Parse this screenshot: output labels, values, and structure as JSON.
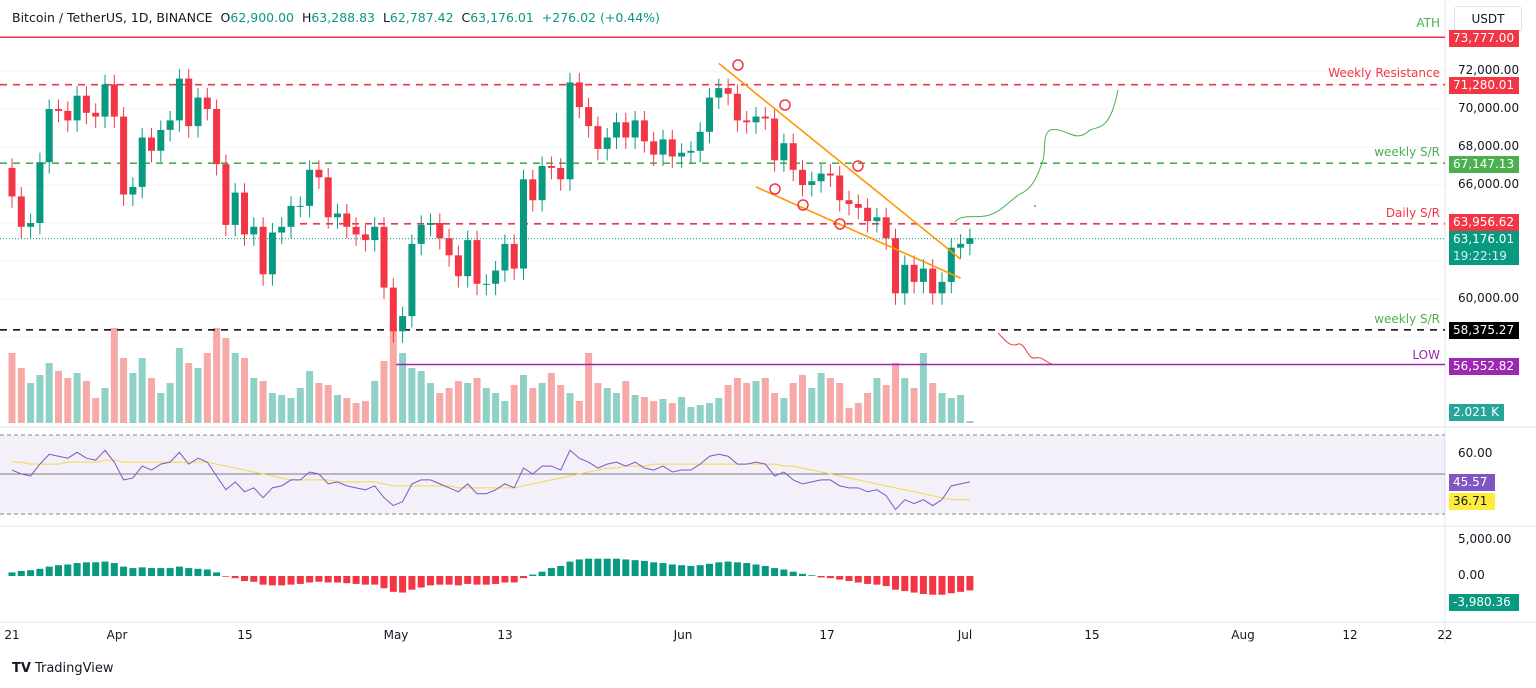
{
  "header": {
    "symbol": "Bitcoin / TetherUS, 1D, BINANCE",
    "o_label": "O",
    "o": "62,900.00",
    "h_label": "H",
    "h": "63,288.83",
    "l_label": "L",
    "l": "62,787.42",
    "c_label": "C",
    "c": "63,176.01",
    "change": "+276.02 (+0.44%)"
  },
  "currency": "USDT",
  "brand": "TradingView",
  "colors": {
    "up": "#089981",
    "down": "#f23645",
    "ath": "#f23645",
    "weekly_sr": "#4caf50",
    "support": "#000000",
    "low": "#9c27b0",
    "trend": "#ff9800",
    "rsi": "#7e57c2",
    "rsi_ma": "#f7d74a"
  },
  "levels": [
    {
      "name": "ATH",
      "price": 73777.0,
      "label": "73,777.00",
      "color": "#f23645",
      "text_color": "#4caf50",
      "style": "solid"
    },
    {
      "name": "Weekly Resistance",
      "price": 71280.01,
      "label": "71,280.01",
      "color": "#f23645",
      "text_color": "#f23645",
      "style": "dashed"
    },
    {
      "name": "weekly S/R",
      "price": 67147.13,
      "label": "67,147.13",
      "color": "#4caf50",
      "text_color": "#4caf50",
      "style": "dashed"
    },
    {
      "name": "Daily S/R",
      "price": 63956.62,
      "label": "63,956.62",
      "color": "#f23645",
      "text_color": "#f23645",
      "style": "dashed"
    },
    {
      "name": "weekly S/R",
      "price": 58375.27,
      "label": "58,375.27",
      "color": "#000000",
      "text_color": "#4caf50",
      "style": "dashed"
    },
    {
      "name": "LOW",
      "price": 56552.82,
      "label": "56,552.82",
      "color": "#9c27b0",
      "text_color": "#9c27b0",
      "style": "solid"
    }
  ],
  "last_price": {
    "price": 63176.01,
    "label": "63,176.01",
    "countdown": "19:22:19"
  },
  "price_axis": [
    "72,000.00",
    "70,000.00",
    "68,000.00",
    "66,000.00",
    "60,000.00"
  ],
  "volume_label": "2.021 K",
  "rsi": {
    "axis": [
      "60.00"
    ],
    "value": "45.57",
    "ma_value": "36.71"
  },
  "macd": {
    "axis": [
      "5,000.00",
      "0.00"
    ],
    "value": "-3,980.36"
  },
  "time_axis": [
    "21",
    "Apr",
    "15",
    "May",
    "13",
    "Jun",
    "17",
    "Jul",
    "15",
    "Aug",
    "12",
    "22"
  ],
  "chart_data": {
    "type": "candlestick",
    "start_date": "2024-03-21",
    "close": [
      65.4,
      63.8,
      64.0,
      67.2,
      70.0,
      69.9,
      69.4,
      70.7,
      69.8,
      69.6,
      71.3,
      69.6,
      65.5,
      65.9,
      68.5,
      67.8,
      68.9,
      69.4,
      71.6,
      69.1,
      70.6,
      70.0,
      67.1,
      63.9,
      65.6,
      63.4,
      63.8,
      61.3,
      63.5,
      63.8,
      64.9,
      64.9,
      66.8,
      66.4,
      64.3,
      64.5,
      63.8,
      63.4,
      63.1,
      63.8,
      60.6,
      58.3,
      59.1,
      62.9,
      63.9,
      64.0,
      63.2,
      62.3,
      61.2,
      63.1,
      60.8,
      60.8,
      61.5,
      62.9,
      61.6,
      66.3,
      65.2,
      67.0,
      66.9,
      66.3,
      71.4,
      70.1,
      69.1,
      67.9,
      68.5,
      69.3,
      68.5,
      69.4,
      68.3,
      67.6,
      68.4,
      67.5,
      67.7,
      67.8,
      68.8,
      70.6,
      71.1,
      70.8,
      69.4,
      69.3,
      69.6,
      69.5,
      67.3,
      68.2,
      66.8,
      66.0,
      66.2,
      66.6,
      66.5,
      65.2,
      65.0,
      64.8,
      64.1,
      64.3,
      63.2,
      60.3,
      61.8,
      60.9,
      61.6,
      60.3,
      60.9,
      62.7,
      62.9,
      63.2
    ],
    "close_unit": "thousand USDT",
    "volume": [
      70,
      55,
      40,
      48,
      60,
      52,
      45,
      50,
      42,
      25,
      35,
      95,
      65,
      50,
      65,
      45,
      30,
      40,
      75,
      60,
      55,
      70,
      95,
      85,
      70,
      65,
      45,
      42,
      30,
      28,
      25,
      35,
      52,
      40,
      38,
      28,
      25,
      20,
      22,
      42,
      62,
      95,
      70,
      55,
      52,
      40,
      30,
      35,
      42,
      40,
      45,
      35,
      30,
      22,
      38,
      48,
      35,
      40,
      50,
      38,
      30,
      22,
      70,
      40,
      35,
      30,
      42,
      28,
      26,
      22,
      24,
      20,
      26,
      16,
      18,
      20,
      25,
      38,
      45,
      40,
      42,
      45,
      30,
      25,
      40,
      48,
      35,
      50,
      45,
      40,
      15,
      20,
      30,
      45,
      38,
      60,
      45,
      35,
      70,
      40,
      30,
      25,
      28,
      2
    ],
    "rsi": [
      52,
      50,
      49,
      55,
      60,
      59,
      58,
      61,
      58,
      57,
      62,
      56,
      47,
      48,
      54,
      52,
      55,
      56,
      61,
      55,
      58,
      56,
      49,
      42,
      46,
      41,
      43,
      38,
      43,
      44,
      47,
      47,
      51,
      50,
      45,
      46,
      44,
      43,
      42,
      44,
      38,
      34,
      36,
      45,
      47,
      47,
      45,
      43,
      41,
      45,
      40,
      40,
      42,
      45,
      43,
      53,
      50,
      54,
      54,
      52,
      62,
      58,
      56,
      53,
      55,
      56,
      54,
      56,
      53,
      52,
      54,
      51,
      52,
      52,
      55,
      59,
      60,
      59,
      55,
      55,
      56,
      55,
      49,
      51,
      47,
      45,
      46,
      47,
      47,
      44,
      43,
      43,
      41,
      42,
      39,
      32,
      37,
      35,
      37,
      34,
      37,
      44,
      45,
      46
    ],
    "rsi_ma": [
      56,
      56,
      55,
      55,
      55,
      55,
      56,
      56,
      56,
      56,
      57,
      57,
      56,
      56,
      56,
      56,
      56,
      56,
      56,
      56,
      56,
      56,
      55,
      54,
      53,
      52,
      51,
      50,
      49,
      48,
      47,
      47,
      47,
      47,
      47,
      46,
      46,
      46,
      46,
      46,
      45,
      44,
      44,
      44,
      44,
      44,
      44,
      44,
      43,
      43,
      43,
      43,
      43,
      43,
      43,
      44,
      45,
      46,
      47,
      48,
      49,
      50,
      51,
      52,
      53,
      53,
      54,
      54,
      54,
      55,
      55,
      55,
      55,
      55,
      55,
      55,
      55,
      55,
      55,
      55,
      55,
      55,
      55,
      54,
      54,
      53,
      52,
      51,
      50,
      49,
      48,
      47,
      46,
      45,
      44,
      43,
      42,
      41,
      40,
      39,
      38,
      37,
      37,
      37
    ],
    "macd_hist": [
      500,
      700,
      800,
      1000,
      1300,
      1500,
      1600,
      1800,
      1900,
      1900,
      2000,
      1800,
      1300,
      1100,
      1200,
      1100,
      1100,
      1100,
      1300,
      1100,
      1000,
      900,
      500,
      -100,
      -300,
      -700,
      -800,
      -1200,
      -1300,
      -1300,
      -1200,
      -1100,
      -900,
      -800,
      -900,
      -900,
      -1000,
      -1100,
      -1200,
      -1200,
      -1700,
      -2200,
      -2300,
      -1900,
      -1600,
      -1300,
      -1200,
      -1200,
      -1300,
      -1100,
      -1200,
      -1200,
      -1100,
      -900,
      -900,
      -300,
      200,
      600,
      1100,
      1400,
      2000,
      2300,
      2400,
      2400,
      2400,
      2400,
      2300,
      2200,
      2100,
      1900,
      1800,
      1600,
      1500,
      1400,
      1500,
      1700,
      1900,
      2000,
      1900,
      1800,
      1600,
      1400,
      1100,
      900,
      600,
      300,
      100,
      -200,
      -300,
      -500,
      -700,
      -900,
      -1100,
      -1200,
      -1400,
      -1900,
      -2100,
      -2300,
      -2500,
      -2600,
      -2600,
      -2400,
      -2200,
      -2000
    ],
    "price_ylim": [
      55000,
      75000
    ],
    "rsi_ylim": [
      30,
      70
    ],
    "trendlines": [
      {
        "from": {
          "date": "2024-06-05",
          "price": 72400
        },
        "to": {
          "date": "2024-07-01",
          "price": 62100
        }
      },
      {
        "from": {
          "date": "2024-06-09",
          "price": 65900
        },
        "to": {
          "date": "2024-07-01",
          "price": 61100
        }
      }
    ]
  }
}
